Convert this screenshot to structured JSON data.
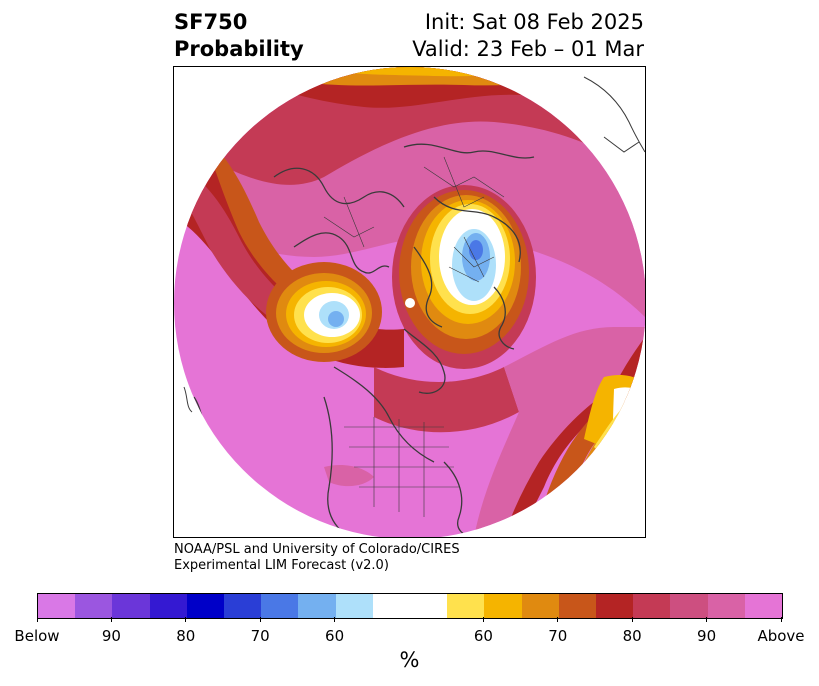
{
  "title": {
    "left_line1": "SF750",
    "left_line2": "Probability",
    "right_line1": "Init: Sat 08 Feb 2025",
    "right_line2": "Valid: 23 Feb – 01 Mar"
  },
  "credit": {
    "line1": "NOAA/PSL and University of Colorado/CIRES",
    "line2": "Experimental LIM Forecast (v2.0)"
  },
  "colorbar": {
    "colors": [
      "#d978e6",
      "#9b56e0",
      "#6b36d9",
      "#3419d2",
      "#0000c8",
      "#2a3ed6",
      "#4a78e6",
      "#74b0f0",
      "#aee0fa",
      "#ffffff",
      "#ffffff",
      "#ffe14d",
      "#f5b400",
      "#e08a10",
      "#c8561a",
      "#b42424",
      "#c43a55",
      "#cd4f80",
      "#d962a6",
      "#e574d6"
    ],
    "labels": [
      "Below",
      "90",
      "80",
      "70",
      "60",
      "60",
      "70",
      "80",
      "90",
      "Above"
    ],
    "unit": "%"
  },
  "map": {
    "projection": "north-polar-stereographic",
    "field": "SF750 probability",
    "colors": {
      "above_high": "#e574d6",
      "above_mid": "#d962a6",
      "above_low": "#c43a55",
      "deep_red": "#b42424",
      "orange_dark": "#c8561a",
      "orange": "#e08a10",
      "yellow": "#f5b400",
      "light_yellow": "#ffe14d",
      "blue_light": "#aee0fa",
      "blue_mid": "#74b0f0",
      "blue_dark": "#4a78e6",
      "coast": "#3a3a3a"
    }
  }
}
